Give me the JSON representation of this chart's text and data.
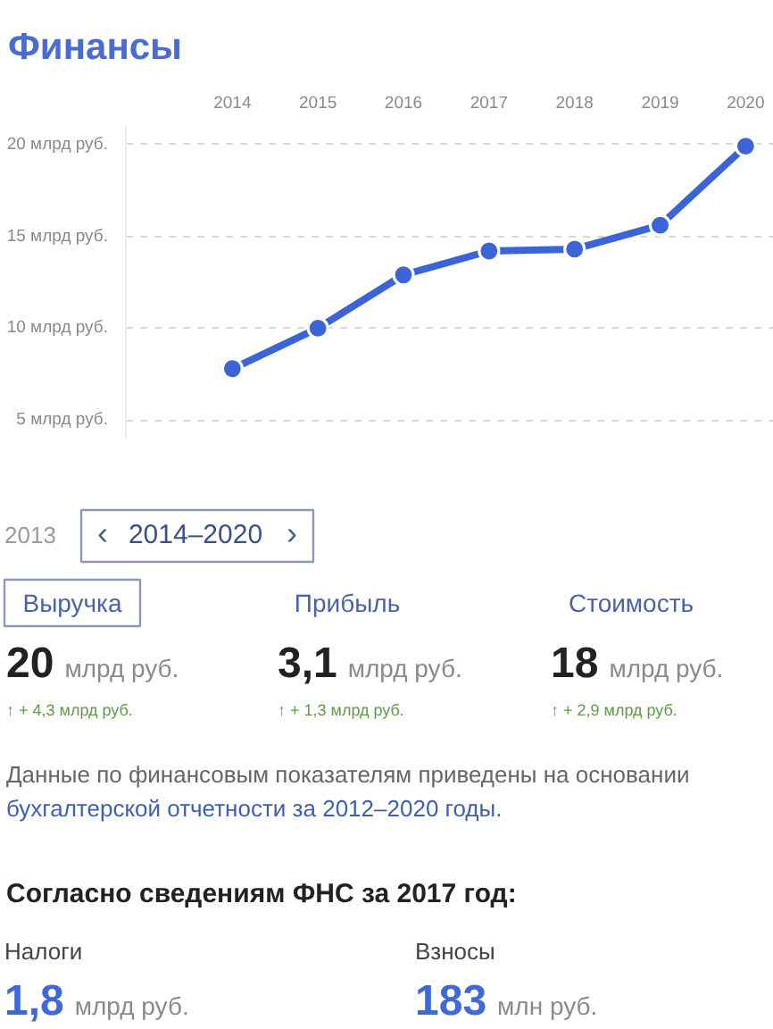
{
  "chart_data": [
    {
      "type": "line",
      "title": "Финансы",
      "categories": [
        "2014",
        "2015",
        "2016",
        "2017",
        "2018",
        "2019",
        "2020"
      ],
      "series": [
        {
          "color": "#3b64d9",
          "values": [
            7.8,
            10.0,
            12.9,
            14.2,
            14.3,
            15.6,
            19.9
          ]
        }
      ],
      "ylim": [
        4,
        21
      ],
      "yticks": [
        {
          "value": 5,
          "label": "5 млрд руб."
        },
        {
          "value": 10,
          "label": "10 млрд руб."
        },
        {
          "value": 15,
          "label": "15 млрд руб."
        },
        {
          "value": 20,
          "label": "20 млрд руб."
        }
      ],
      "grid": "y",
      "marker": "circle",
      "line_style": "solid"
    },
    {
      "type": "other",
      "annotations": [
        "2013",
        "‹",
        "2014–2020",
        "›",
        "Выручка",
        "Прибыль",
        "Стоимость",
        "20",
        "млрд руб.",
        "3,1",
        "млрд руб.",
        "18",
        "млрд руб.",
        "↑ + 4,3 млрд руб.",
        "↑ + 1,3 млрд руб.",
        "↑ + 2,9 млрд руб.",
        "Данные по финансовым показателям приведены на основании",
        "бухгалтерской отчетности за 2012–2020 годы.",
        "Согласно сведениям ФНС за 2017 год:",
        "Налоги",
        "Взносы",
        "1,8",
        "млрд руб.",
        "183",
        "млн руб."
      ]
    }
  ]
}
